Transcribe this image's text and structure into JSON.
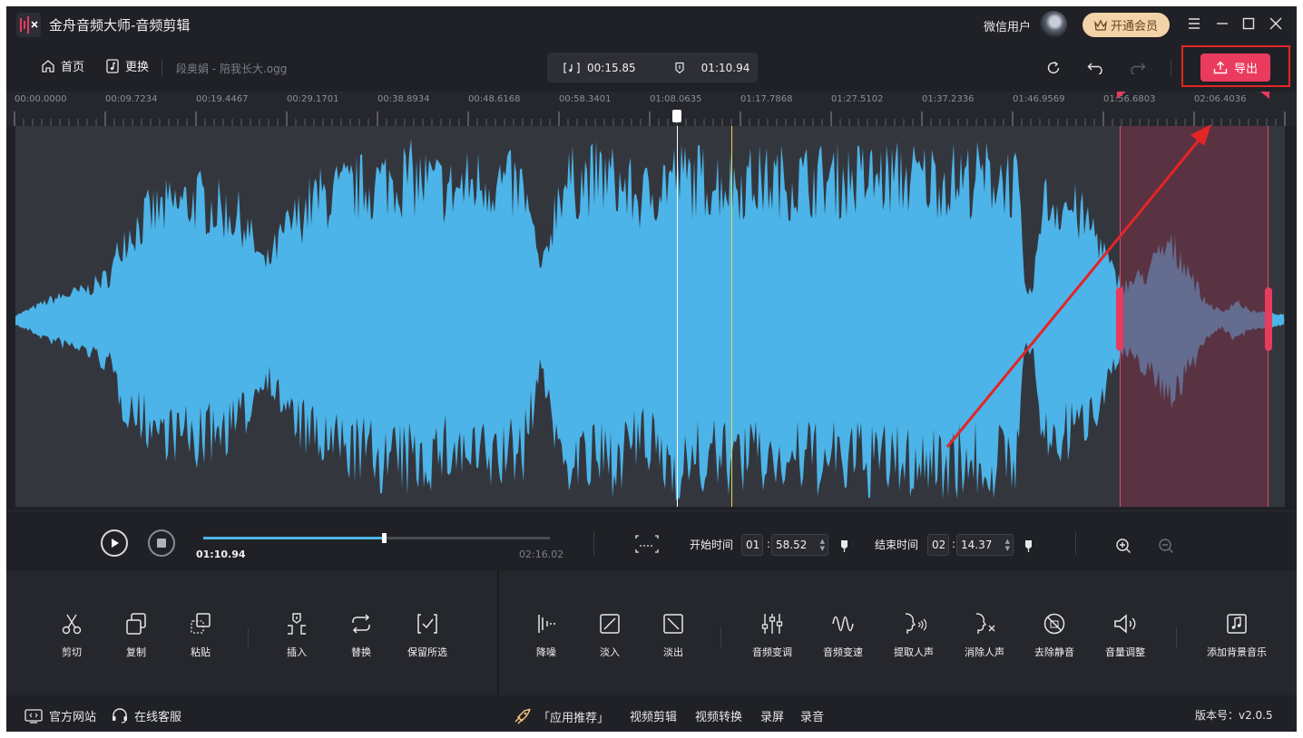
{
  "app": {
    "title": "金舟音频大师-音频剪辑",
    "user_name": "微信用户",
    "vip_label": "开通会员"
  },
  "toolbar": {
    "home_label": "首页",
    "replace_label": "更换",
    "file_name": "段奥娟 - 陪我长大.ogg",
    "selection_duration": "00:15.85",
    "playhead_time": "01:10.94",
    "export_label": "导出"
  },
  "ruler": {
    "labels": [
      "00:00.0000",
      "00:09.7234",
      "00:19.4467",
      "00:29.1701",
      "00:38.8934",
      "00:48.6168",
      "00:58.3401",
      "01:08.0635",
      "01:17.7868",
      "01:27.5102",
      "01:37.2336",
      "01:46.9569",
      "01:56.6803",
      "02:06.4036"
    ]
  },
  "transport": {
    "current_time": "01:10.94",
    "total_time": "02:16.02",
    "progress": 0.52,
    "start_label": "开始时间",
    "start_min": "01",
    "start_sec": "58.52",
    "end_label": "结束时间",
    "end_min": "02",
    "end_sec": "14.37",
    "colon": ":"
  },
  "tools": {
    "left": [
      {
        "label": "剪切",
        "icon": "scissors-icon"
      },
      {
        "label": "复制",
        "icon": "copy-icon"
      },
      {
        "label": "粘贴",
        "icon": "paste-icon"
      },
      {
        "label": "插入",
        "icon": "insert-icon"
      },
      {
        "label": "替换",
        "icon": "replace-icon"
      },
      {
        "label": "保留所选",
        "icon": "keep-selection-icon"
      }
    ],
    "right": [
      {
        "label": "降噪",
        "icon": "noise-reduction-icon"
      },
      {
        "label": "淡入",
        "icon": "fade-in-icon"
      },
      {
        "label": "淡出",
        "icon": "fade-out-icon"
      },
      {
        "label": "音频变调",
        "icon": "pitch-icon"
      },
      {
        "label": "音频变速",
        "icon": "speed-icon"
      },
      {
        "label": "提取人声",
        "icon": "extract-vocal-icon"
      },
      {
        "label": "消除人声",
        "icon": "remove-vocal-icon"
      },
      {
        "label": "去除静音",
        "icon": "remove-silence-icon"
      },
      {
        "label": "音量调整",
        "icon": "volume-icon"
      },
      {
        "label": "添加背景音乐",
        "icon": "background-music-icon"
      }
    ]
  },
  "statusbar": {
    "website_label": "官方网站",
    "service_label": "在线客服",
    "recommend_label": "「应用推荐」",
    "links": [
      "视频剪辑",
      "视频转换",
      "录屏",
      "录音"
    ],
    "version": "版本号：v2.0.5"
  },
  "colors": {
    "background": "#202126",
    "waveform": "#4cb4e8",
    "accent": "#ea3a5e",
    "vip": "#f3d3a8"
  }
}
